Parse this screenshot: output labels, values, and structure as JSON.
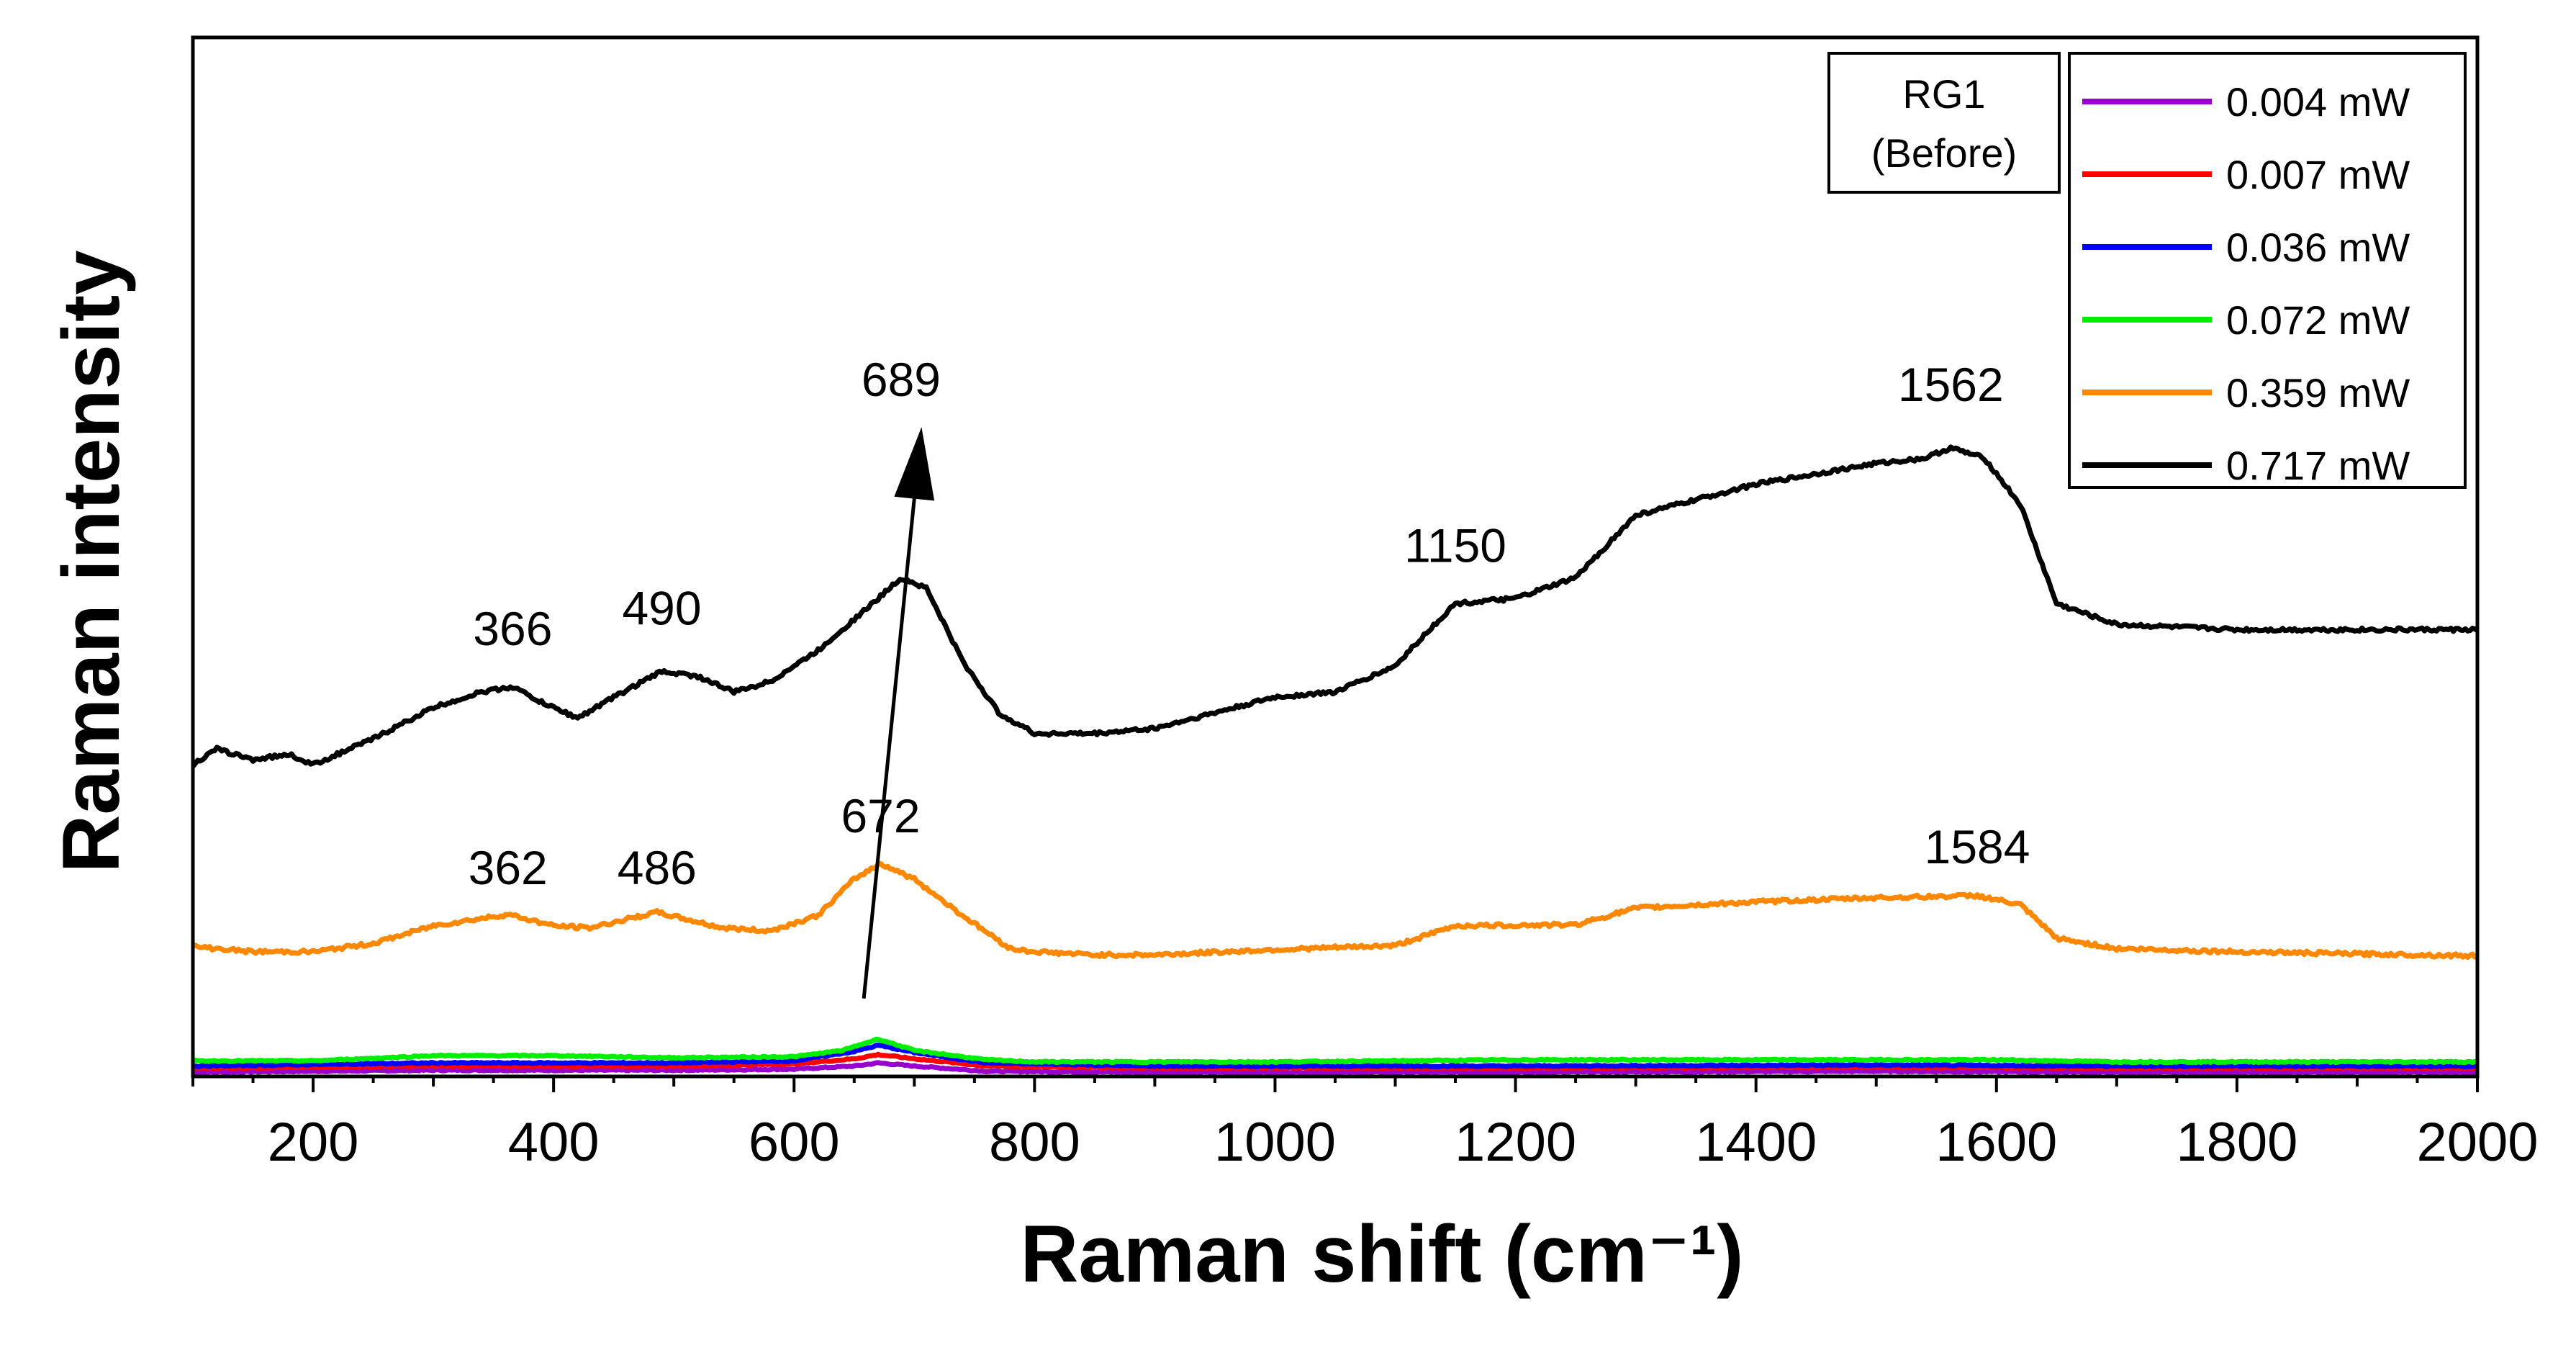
{
  "chart_data": {
    "type": "line",
    "xlabel": "Raman shift (cm⁻¹)",
    "ylabel": "Raman intensity",
    "xlim": [
      100,
      2000
    ],
    "ylim": [
      0,
      100
    ],
    "x_ticks": [
      200,
      400,
      600,
      800,
      1000,
      1200,
      1400,
      1600,
      1800,
      2000
    ],
    "legend_title": "RG1\n(Before)",
    "legend_position": "top-right",
    "series": [
      {
        "name": "0.004 mW",
        "color": "#9900cc",
        "x": [
          100,
          300,
          500,
          600,
          650,
          670,
          700,
          760,
          900,
          1200,
          1500,
          1700,
          2000
        ],
        "values": [
          0.4,
          0.6,
          0.6,
          0.7,
          1.0,
          1.3,
          1.0,
          0.5,
          0.4,
          0.4,
          0.5,
          0.4,
          0.4
        ]
      },
      {
        "name": "0.007 mW",
        "color": "#ff0000",
        "x": [
          100,
          300,
          500,
          600,
          650,
          670,
          700,
          760,
          900,
          1200,
          1500,
          1700,
          2000
        ],
        "values": [
          0.8,
          1.0,
          1.0,
          1.2,
          1.7,
          2.1,
          1.7,
          1.0,
          0.8,
          0.8,
          0.9,
          0.8,
          0.8
        ]
      },
      {
        "name": "0.036 mW",
        "color": "#0000ff",
        "x": [
          100,
          300,
          500,
          600,
          650,
          670,
          700,
          760,
          900,
          1200,
          1500,
          1700,
          2000
        ],
        "values": [
          1.0,
          1.3,
          1.3,
          1.5,
          2.4,
          3.0,
          2.3,
          1.3,
          1.0,
          1.0,
          1.1,
          1.0,
          1.0
        ]
      },
      {
        "name": "0.072 mW",
        "color": "#00ee00",
        "x": [
          100,
          200,
          300,
          400,
          500,
          600,
          640,
          670,
          700,
          760,
          800,
          1000,
          1200,
          1400,
          1600,
          1700,
          2000
        ],
        "values": [
          1.5,
          1.5,
          2.0,
          2.0,
          1.8,
          1.9,
          2.5,
          3.6,
          2.5,
          1.6,
          1.4,
          1.4,
          1.6,
          1.6,
          1.6,
          1.4,
          1.4
        ]
      },
      {
        "name": "0.359 mW",
        "color": "#ff8800",
        "x": [
          100,
          150,
          200,
          250,
          300,
          362,
          400,
          430,
          486,
          540,
          580,
          620,
          650,
          672,
          700,
          740,
          780,
          800,
          850,
          900,
          1000,
          1100,
          1150,
          1250,
          1300,
          1400,
          1500,
          1584,
          1620,
          1650,
          1700,
          1800,
          1900,
          2000
        ],
        "values": [
          12.5,
          12.0,
          12.0,
          12.8,
          14.5,
          15.6,
          14.5,
          14.3,
          15.8,
          14.3,
          14.0,
          15.5,
          19.0,
          20.5,
          19.0,
          15.5,
          12.3,
          12.0,
          11.7,
          11.7,
          12.2,
          12.6,
          14.5,
          14.6,
          16.2,
          16.8,
          17.2,
          17.4,
          16.5,
          13.3,
          12.3,
          12.0,
          11.8,
          11.6
        ]
      },
      {
        "name": "0.717 mW",
        "color": "#000000",
        "x": [
          100,
          120,
          150,
          180,
          200,
          250,
          300,
          340,
          366,
          390,
          420,
          450,
          490,
          520,
          550,
          580,
          620,
          650,
          670,
          689,
          710,
          740,
          770,
          800,
          850,
          900,
          1000,
          1050,
          1100,
          1120,
          1150,
          1200,
          1250,
          1300,
          1350,
          1400,
          1450,
          1500,
          1540,
          1562,
          1590,
          1620,
          1650,
          1700,
          1800,
          1900,
          2000
        ],
        "values": [
          30.0,
          31.5,
          30.5,
          31.0,
          30.0,
          32.5,
          35.5,
          37.0,
          37.5,
          36.0,
          34.5,
          36.5,
          39.0,
          38.5,
          37.0,
          38.0,
          41.0,
          44.0,
          46.0,
          48.0,
          47.0,
          40.0,
          35.0,
          33.0,
          33.0,
          33.5,
          36.5,
          37.0,
          39.5,
          42.0,
          45.5,
          46.0,
          48.0,
          54.0,
          55.5,
          57.0,
          58.0,
          59.0,
          59.5,
          60.5,
          59.5,
          55.0,
          45.5,
          43.5,
          43.0,
          43.0,
          43.0
        ]
      }
    ],
    "annotations": [
      {
        "text": "366",
        "x": 366,
        "y": 41.5
      },
      {
        "text": "490",
        "x": 490,
        "y": 43.5
      },
      {
        "text": "689",
        "x": 689,
        "y": 65.5
      },
      {
        "text": "1150",
        "x": 1150,
        "y": 49.5
      },
      {
        "text": "1562",
        "x": 1562,
        "y": 65.0
      },
      {
        "text": "362",
        "x": 362,
        "y": 18.5
      },
      {
        "text": "486",
        "x": 486,
        "y": 18.5
      },
      {
        "text": "672",
        "x": 672,
        "y": 23.5
      },
      {
        "text": "1584",
        "x": 1584,
        "y": 20.5
      }
    ],
    "arrow": {
      "from": {
        "x": 658,
        "y": 7.5
      },
      "to": {
        "x": 706,
        "y": 62.5
      }
    }
  }
}
